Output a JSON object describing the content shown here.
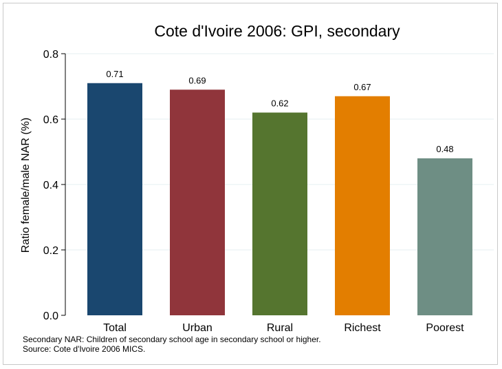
{
  "chart_data": {
    "type": "bar",
    "title": "Cote d'Ivoire 2006: GPI, secondary",
    "ylabel": "Ratio female/male NAR (%)",
    "xlabel": "",
    "categories": [
      "Total",
      "Urban",
      "Rural",
      "Richest",
      "Poorest"
    ],
    "values": [
      0.71,
      0.69,
      0.62,
      0.67,
      0.48
    ],
    "value_labels": [
      "0.71",
      "0.69",
      "0.62",
      "0.67",
      "0.48"
    ],
    "bar_colors": [
      "#1a476f",
      "#90353b",
      "#55752f",
      "#e37e00",
      "#6e8e84"
    ],
    "ylim": [
      0,
      0.8
    ],
    "yticks": [
      0,
      0.2,
      0.4,
      0.6,
      0.8
    ],
    "ytick_labels": [
      "0.0",
      "0.2",
      "0.4",
      "0.6",
      "0.8"
    ],
    "grid": true,
    "legend": "none"
  },
  "notes": [
    "Secondary NAR: Children of secondary school age in secondary school or higher.",
    "Source: Cote d'Ivoire 2006 MICS."
  ]
}
